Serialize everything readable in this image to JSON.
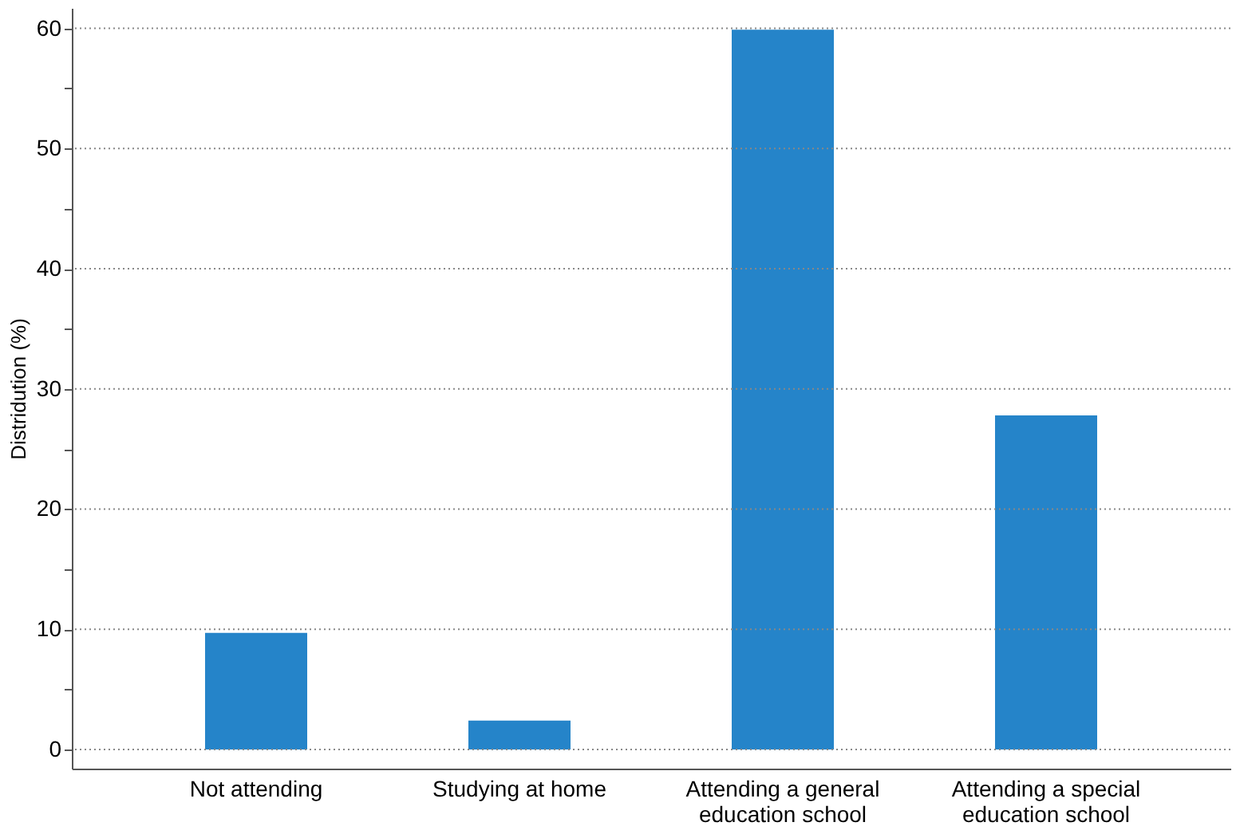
{
  "chart_data": {
    "type": "bar",
    "ylabel": "Distridution (%)",
    "categories": [
      "Not attending",
      "Studying at home",
      "Attending a general education school",
      "Attending a special education school"
    ],
    "values": [
      9.7,
      2.4,
      59.9,
      27.8
    ],
    "color": "#2584c9",
    "ylim": [
      -1.6,
      61.7
    ],
    "yticks": [
      0,
      {
        "value": 5,
        "label": null
      },
      10,
      {
        "value": 15,
        "label": null
      },
      20,
      {
        "value": 25,
        "label": null
      },
      30,
      {
        "value": 35,
        "label": null
      },
      40,
      {
        "value": 45,
        "label": null
      },
      50,
      {
        "value": 55,
        "label": null
      },
      60
    ],
    "grid": "y"
  }
}
